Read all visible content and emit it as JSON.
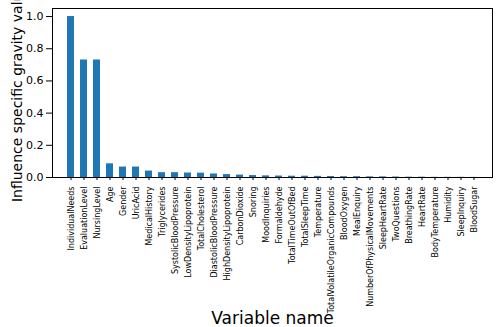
{
  "chart_data": {
    "type": "bar",
    "x_label": "Variable name",
    "y_label": "Influence specific gravity value",
    "categories": [
      "IndividualNeeds",
      "EvaluationLevel",
      "NursingLevel",
      "Age",
      "Gender",
      "UricAcid",
      "MedicalHistory",
      "Triglycerides",
      "SystolicBloodPressure",
      "LowDensityLipoprotein",
      "TotalCholesterol",
      "DiastolicBloodPressure",
      "HighDensityLipoprotein",
      "CarbonDioxide",
      "Snoring",
      "MoodInquiries",
      "Formaldehyde",
      "TotalTimeOutOfBed",
      "TotalSleepTime",
      "Temperature",
      "TotalVolatileOrganicCompounds",
      "BloodOxygen",
      "MealEnquiry",
      "NumberOfPhysicalMovements",
      "SleepHeartRate",
      "TwoQuestions",
      "BreathingRate",
      "HeartRate",
      "BodyTemperature",
      "Humidity",
      "SleepInquiry",
      "BloodSugar"
    ],
    "values": [
      1.0,
      0.73,
      0.73,
      0.085,
      0.065,
      0.065,
      0.04,
      0.03,
      0.03,
      0.028,
      0.027,
      0.022,
      0.018,
      0.015,
      0.012,
      0.01,
      0.009,
      0.008,
      0.008,
      0.007,
      0.006,
      0.005,
      0.005,
      0.004,
      0.004,
      0.003,
      0.002,
      0.002,
      0.001,
      0.001,
      0.001,
      0.0005
    ],
    "color": "#1f77b4",
    "ylim": [
      0,
      1.05
    ],
    "yticks": [
      {
        "value": 0,
        "label": "0.0"
      },
      0.2,
      0.4,
      0.6,
      0.8,
      {
        "value": 1,
        "label": "1.0"
      }
    ],
    "grid": false
  }
}
